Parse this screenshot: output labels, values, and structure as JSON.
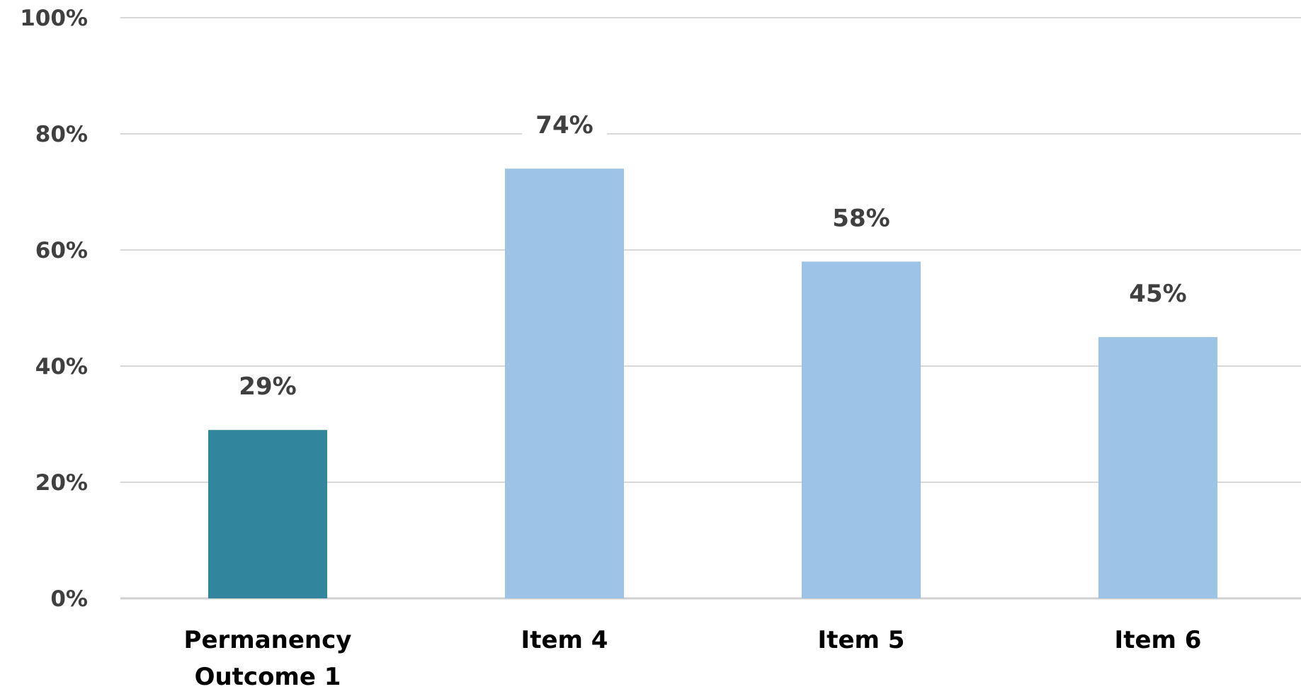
{
  "chart_data": {
    "type": "bar",
    "categories": [
      "Permanency Outcome 1",
      "Item 4",
      "Item 5",
      "Item 6"
    ],
    "category_lines": [
      [
        "Permanency",
        "Outcome 1"
      ],
      [
        "Item 4"
      ],
      [
        "Item 5"
      ],
      [
        "Item 6"
      ]
    ],
    "values": [
      29,
      74,
      58,
      45
    ],
    "value_labels": [
      "29%",
      "74%",
      "58%",
      "45%"
    ],
    "bar_colors": [
      "#31859c",
      "#9dc3e6",
      "#9dc3e6",
      "#9dc3e6"
    ],
    "ylim": [
      0,
      100
    ],
    "yticks": [
      0,
      20,
      40,
      60,
      80,
      100
    ],
    "ytick_labels": [
      "0%",
      "20%",
      "40%",
      "60%",
      "80%",
      "100%"
    ],
    "grid": true,
    "legend": "none",
    "title": "",
    "xlabel": "",
    "ylabel": ""
  }
}
